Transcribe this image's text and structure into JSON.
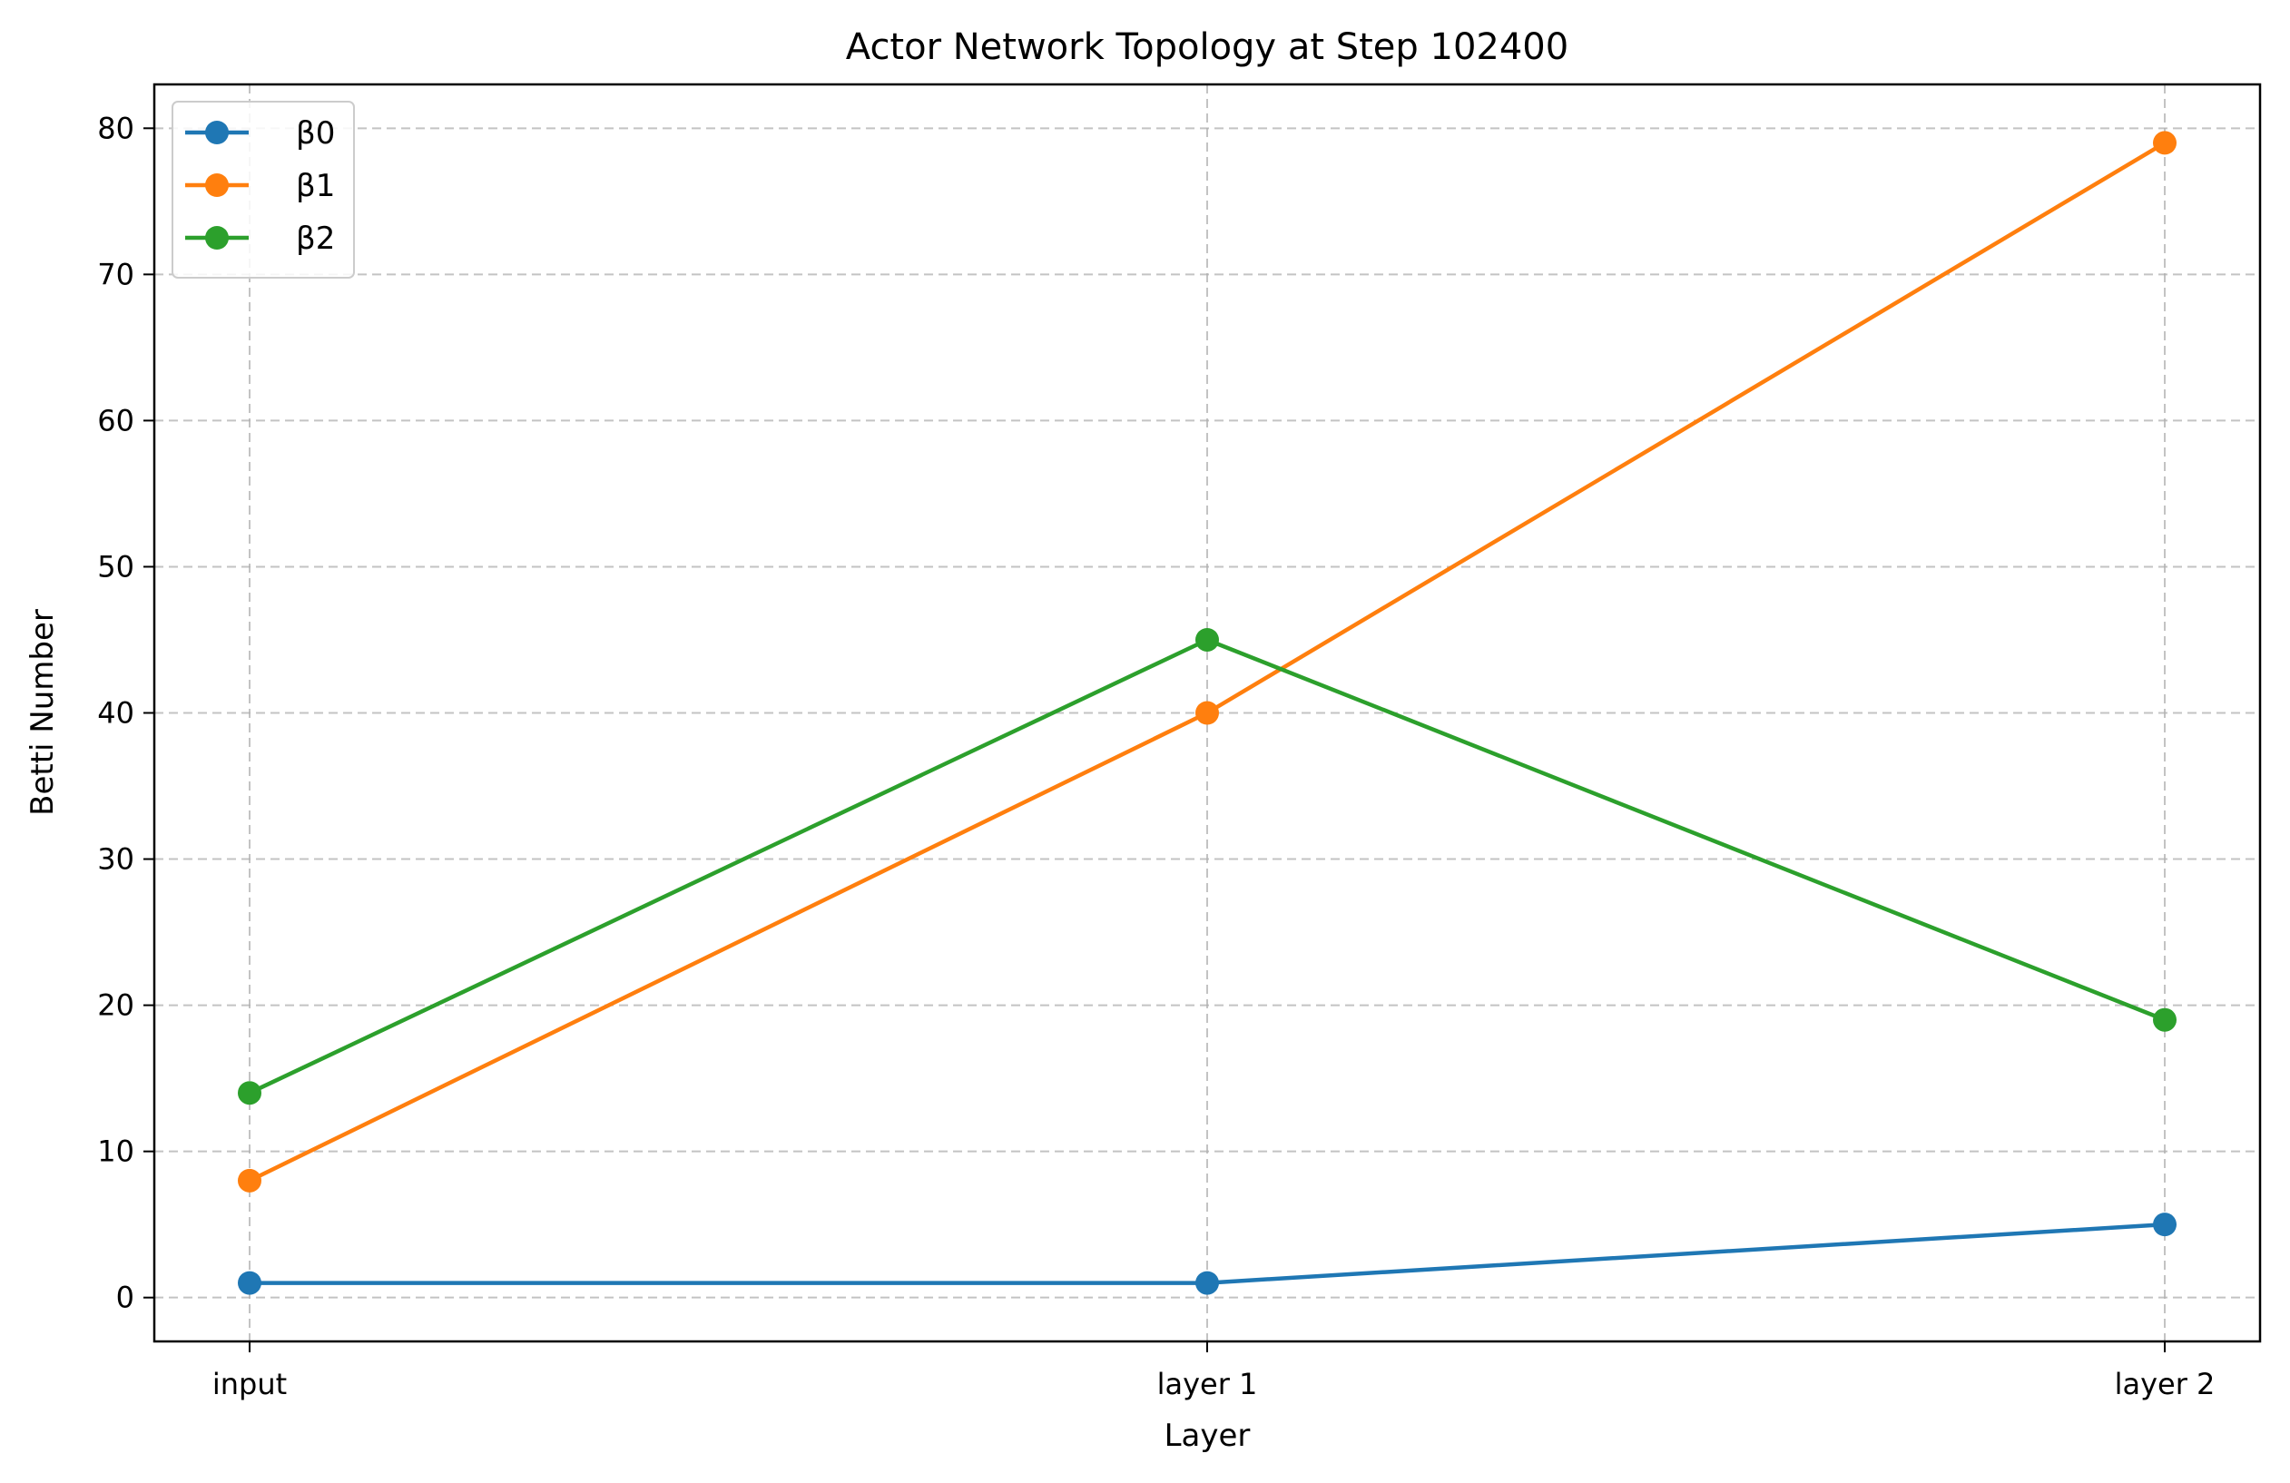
{
  "chart_data": {
    "type": "line",
    "title": "Actor Network Topology at Step 102400",
    "xlabel": "Layer",
    "ylabel": "Betti Number",
    "categories": [
      "input",
      "layer 1",
      "layer 2"
    ],
    "ylim": [
      -3,
      83
    ],
    "yticks": [
      0,
      10,
      20,
      30,
      40,
      50,
      60,
      70,
      80
    ],
    "grid": true,
    "legend_position": "top-left",
    "series": [
      {
        "name": "β0",
        "color": "#1f77b4",
        "values": [
          1,
          1,
          5
        ]
      },
      {
        "name": "β1",
        "color": "#ff7f0e",
        "values": [
          8,
          40,
          79
        ]
      },
      {
        "name": "β2",
        "color": "#2ca02c",
        "values": [
          14,
          45,
          19
        ]
      }
    ]
  }
}
